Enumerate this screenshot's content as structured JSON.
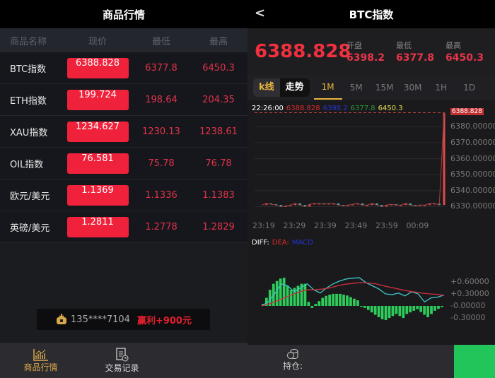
{
  "left": {
    "title": "商品行情",
    "columns": [
      "商品名称",
      "现价",
      "最低",
      "最高"
    ],
    "rows": [
      {
        "name": "BTC指数",
        "price": "6388.828",
        "low": "6377.8",
        "high": "6450.3"
      },
      {
        "name": "ETH指数",
        "price": "199.724",
        "low": "198.64",
        "high": "204.35"
      },
      {
        "name": "XAU指数",
        "price": "1234.627",
        "low": "1230.13",
        "high": "1238.61"
      },
      {
        "name": "OIL指数",
        "price": "76.581",
        "low": "75.78",
        "high": "76.78"
      },
      {
        "name": "欧元/美元",
        "price": "1.1369",
        "low": "1.1336",
        "high": "1.1383"
      },
      {
        "name": "英磅/美元",
        "price": "1.2811",
        "low": "1.2778",
        "high": "1.2829"
      }
    ],
    "ticker": {
      "phone": "135****7104",
      "profit": "赢利+900元",
      "icon": "money-bag-icon"
    },
    "nav": [
      {
        "label": "商品行情",
        "icon": "chart-icon",
        "active": true
      },
      {
        "label": "交易记录",
        "icon": "document-clock-icon",
        "active": false
      }
    ]
  },
  "right": {
    "back": "<",
    "title": "BTC指数",
    "price": "6388.828",
    "stats": [
      {
        "label": "开盘",
        "value": "6398.2"
      },
      {
        "label": "最低",
        "value": "6377.8"
      },
      {
        "label": "最高",
        "value": "6450.3"
      }
    ],
    "mode_tabs": [
      "k线",
      "走势"
    ],
    "timeframes": [
      "1M",
      "5M",
      "15M",
      "30M",
      "1H",
      "1D"
    ],
    "active_timeframe": "1M",
    "info": {
      "time": "22:26:00",
      "close": "6388.828",
      "open": "6398.2",
      "low": "6377.8",
      "high": "6450.3"
    },
    "bottom_nav": {
      "label": "持仓:",
      "icon": "coins-icon"
    }
  },
  "colors": {
    "red": "#f0213a",
    "gold": "#e8b43c",
    "green": "#2ecc5a",
    "cyan": "#3cc8c8"
  },
  "chart_data": [
    {
      "type": "line",
      "y_ticks": [
        "6380.00000",
        "6370.00000",
        "6360.00000",
        "6350.00000",
        "6340.00000",
        "6330.00000"
      ],
      "ylim": [
        6328,
        6389
      ],
      "x_ticks": [
        "23:19",
        "23:29",
        "23:39",
        "23:49",
        "23:59",
        "00:09"
      ],
      "last_label": "6388.828",
      "values": [
        6331,
        6332,
        6331.5,
        6331,
        6330,
        6330.5,
        6331,
        6332,
        6331,
        6330,
        6331.5,
        6332,
        6332,
        6331.5,
        6332,
        6332,
        6331,
        6330.5,
        6331,
        6331.5,
        6332,
        6331,
        6331,
        6332,
        6331,
        6330,
        6331,
        6331.5,
        6331,
        6331,
        6332,
        6331,
        6330.5,
        6331,
        6331,
        6332,
        6332,
        6331,
        6388.8
      ]
    },
    {
      "type": "bar",
      "labels": [
        "DIFF:",
        "DEA:",
        "MACD"
      ],
      "y_ticks": [
        "+0.60000",
        "+0.30000",
        "-0.00000",
        "-0.30000"
      ],
      "ylim": [
        -0.45,
        0.85
      ],
      "histogram": [
        0.05,
        0.2,
        0.4,
        0.55,
        0.62,
        0.68,
        0.7,
        0.5,
        0.4,
        0.45,
        0.5,
        0.55,
        0.55,
        0.1,
        -0.05,
        0.05,
        0.12,
        0.2,
        0.25,
        0.28,
        0.3,
        0.3,
        0.3,
        0.28,
        0.26,
        0.22,
        0.18,
        0.14,
        -0.02,
        -0.05,
        -0.1,
        -0.16,
        -0.22,
        -0.28,
        -0.33,
        -0.35,
        -0.3,
        -0.25,
        -0.2,
        -0.25,
        -0.3,
        -0.2,
        -0.16,
        -0.12,
        -0.08,
        -0.15,
        -0.22,
        -0.28,
        -0.2,
        -0.12,
        -0.07,
        -0.03
      ],
      "diff": [
        0,
        0.1,
        0.3,
        0.55,
        0.5,
        0.35,
        0.45,
        0.55,
        0.4,
        0.32,
        0.45,
        0.55,
        0.62,
        0.67,
        0.69,
        0.7,
        0.58,
        0.5,
        0.42,
        0.3,
        0.28,
        0.32,
        0.25,
        0.35,
        0.3,
        0.1,
        0.2,
        0.22,
        0.27
      ],
      "dea": [
        0,
        0.05,
        0.12,
        0.2,
        0.28,
        0.35,
        0.4,
        0.4,
        0.42,
        0.45,
        0.5,
        0.54,
        0.56,
        0.58,
        0.57,
        0.55,
        0.5,
        0.46,
        0.42,
        0.38,
        0.35,
        0.32,
        0.3,
        0.29,
        0.26
      ]
    }
  ]
}
